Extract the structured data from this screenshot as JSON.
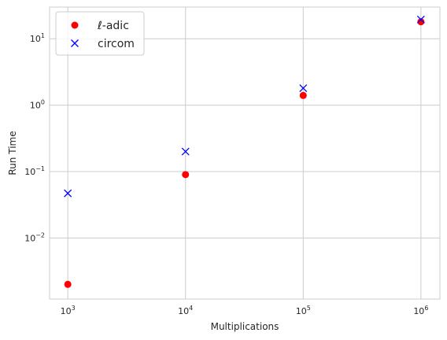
{
  "chart_data": {
    "type": "scatter",
    "xlabel": "Multiplications",
    "ylabel": "Run Time",
    "xscale": "log",
    "yscale": "log",
    "x": [
      1000,
      10000,
      100000,
      1000000
    ],
    "x_tick_values": [
      1000,
      10000,
      100000,
      1000000
    ],
    "x_tick_labels": [
      {
        "base": "10",
        "exp": "3"
      },
      {
        "base": "10",
        "exp": "4"
      },
      {
        "base": "10",
        "exp": "5"
      },
      {
        "base": "10",
        "exp": "6"
      }
    ],
    "y_tick_values": [
      0.01,
      0.1,
      1,
      10
    ],
    "y_tick_labels": [
      {
        "base": "10",
        "exp": "−2"
      },
      {
        "base": "10",
        "exp": "−1"
      },
      {
        "base": "10",
        "exp": "0"
      },
      {
        "base": "10",
        "exp": "1"
      }
    ],
    "xlim": [
      700,
      1450000
    ],
    "ylim": [
      0.0012,
      30
    ],
    "grid": true,
    "legend_position": "top-left",
    "series": [
      {
        "name": "ℓ-adic",
        "marker": "circle",
        "color": "#ff0000",
        "values": [
          0.002,
          0.09,
          1.4,
          18
        ]
      },
      {
        "name": "circom",
        "marker": "x",
        "color": "#0000ff",
        "values": [
          0.047,
          0.2,
          1.8,
          19.5
        ]
      }
    ]
  }
}
